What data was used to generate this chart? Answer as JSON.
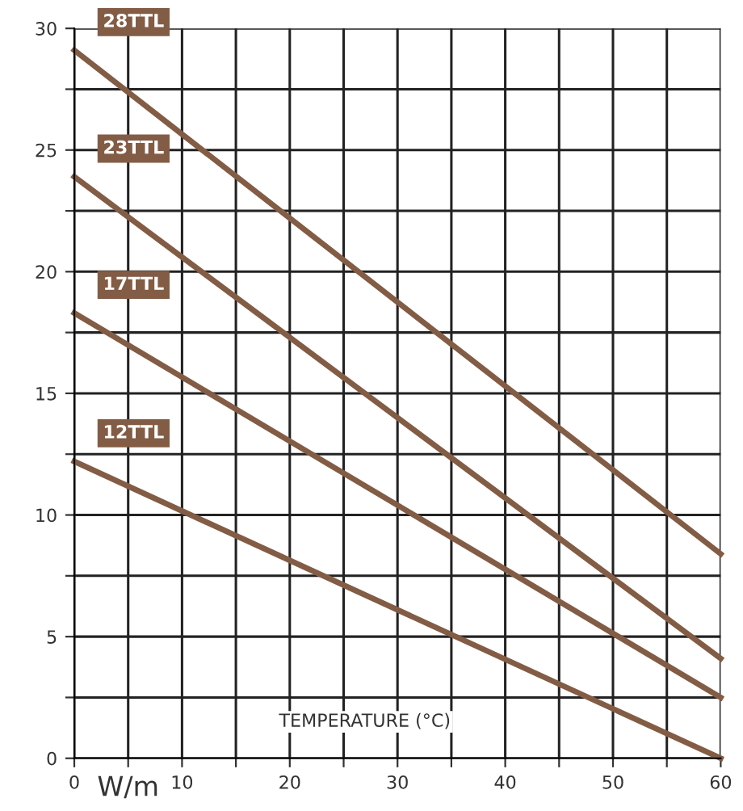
{
  "chart_data": {
    "type": "line",
    "xlabel": "TEMPERATURE (°C)",
    "annotations": [
      "W/m"
    ],
    "x": [
      0,
      60
    ],
    "series": [
      {
        "name": "28TTL",
        "color": "#835c45",
        "values": [
          29.1,
          8.4
        ]
      },
      {
        "name": "23TTL",
        "color": "#835c45",
        "values": [
          23.9,
          4.1
        ]
      },
      {
        "name": "17TTL",
        "color": "#835c45",
        "values": [
          18.3,
          2.5
        ]
      },
      {
        "name": "12TTL",
        "color": "#835c45",
        "values": [
          12.2,
          0
        ]
      }
    ],
    "xlim": [
      0,
      60
    ],
    "ylim": [
      0,
      30
    ],
    "xticks": [
      0,
      {
        "value": 5,
        "label": null
      },
      10,
      {
        "value": 15,
        "label": null
      },
      20,
      {
        "value": 25,
        "label": null
      },
      30,
      {
        "value": 35,
        "label": null
      },
      40,
      {
        "value": 45,
        "label": null
      },
      50,
      {
        "value": 55,
        "label": null
      },
      60
    ],
    "yticks": [
      0,
      {
        "value": 2.5,
        "label": null
      },
      5,
      {
        "value": 7.5,
        "label": null
      },
      10,
      {
        "value": 12.5,
        "label": null
      },
      15,
      {
        "value": 17.5,
        "label": null
      },
      20,
      {
        "value": 22.5,
        "label": null
      },
      25,
      {
        "value": 27.5,
        "label": null
      },
      30
    ],
    "grid": true,
    "legend": false,
    "marker": "none",
    "line_style": "solid"
  }
}
